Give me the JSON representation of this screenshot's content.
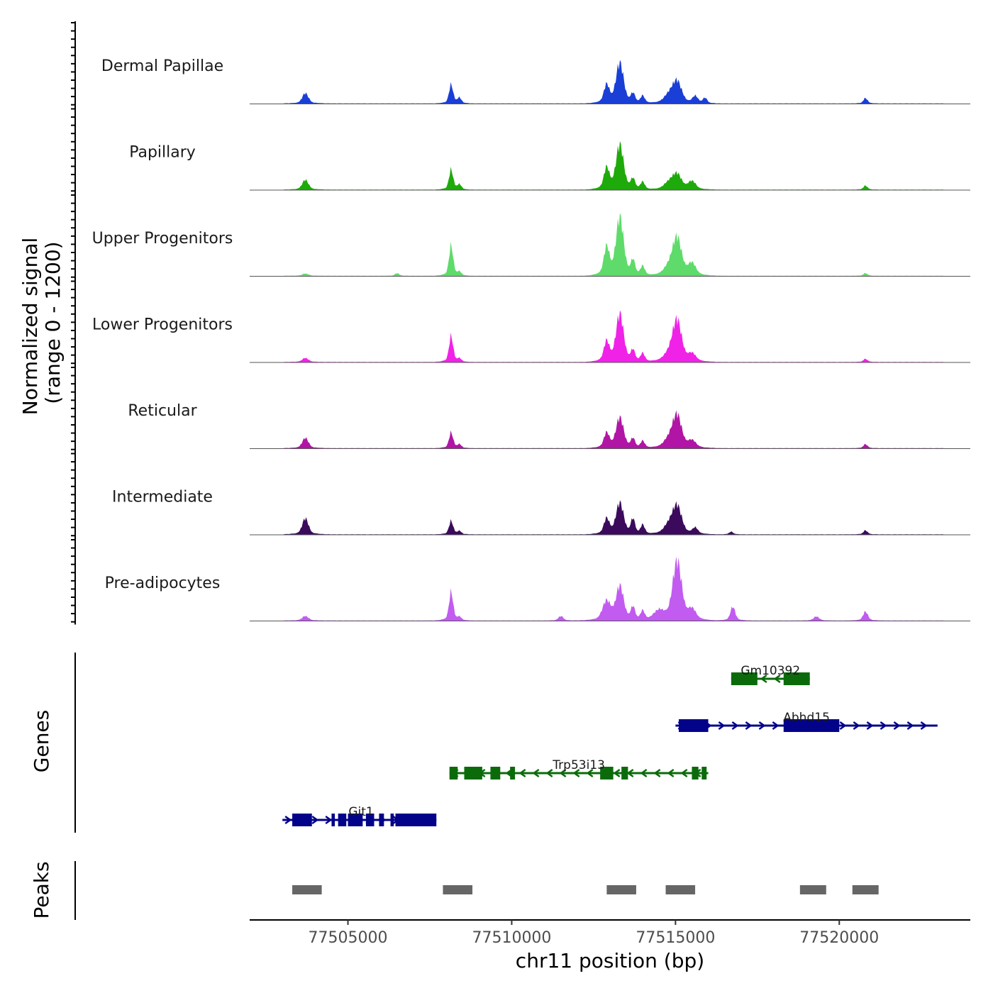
{
  "chart_data": {
    "type": "area",
    "title": "",
    "chromosome": "chr11",
    "xlabel": "chr11 position (bp)",
    "ylabel_line1": "Normalized signal",
    "ylabel_line2": "(range 0 - 1200)",
    "ylim": [
      0,
      1200
    ],
    "xlim": [
      77502000,
      77524000
    ],
    "x_ticks": [
      77505000,
      77510000,
      77515000,
      77520000
    ],
    "x_tick_labels": [
      "77505000",
      "77510000",
      "77515000",
      "77520000"
    ],
    "peak_centers": [
      77503700,
      77508150,
      77513300,
      77515050,
      77516750,
      77520800
    ],
    "tracks": [
      {
        "name": "Dermal Papillae",
        "color": "#1a3fd6",
        "peaks": [
          {
            "x": 77503700,
            "y": 230,
            "w": 90
          },
          {
            "x": 77508150,
            "y": 420,
            "w": 60
          },
          {
            "x": 77508400,
            "y": 120,
            "w": 60
          },
          {
            "x": 77512900,
            "y": 400,
            "w": 80
          },
          {
            "x": 77513300,
            "y": 900,
            "w": 110
          },
          {
            "x": 77513700,
            "y": 200,
            "w": 60
          },
          {
            "x": 77514000,
            "y": 160,
            "w": 60
          },
          {
            "x": 77514800,
            "y": 180,
            "w": 140
          },
          {
            "x": 77515050,
            "y": 480,
            "w": 130
          },
          {
            "x": 77515600,
            "y": 150,
            "w": 80
          },
          {
            "x": 77515900,
            "y": 120,
            "w": 60
          },
          {
            "x": 77520800,
            "y": 120,
            "w": 60
          }
        ]
      },
      {
        "name": "Papillary",
        "color": "#1eaa0a",
        "peaks": [
          {
            "x": 77503700,
            "y": 220,
            "w": 90
          },
          {
            "x": 77508150,
            "y": 450,
            "w": 60
          },
          {
            "x": 77508400,
            "y": 110,
            "w": 60
          },
          {
            "x": 77512900,
            "y": 470,
            "w": 80
          },
          {
            "x": 77513300,
            "y": 1000,
            "w": 110
          },
          {
            "x": 77513700,
            "y": 220,
            "w": 60
          },
          {
            "x": 77514000,
            "y": 160,
            "w": 60
          },
          {
            "x": 77514800,
            "y": 150,
            "w": 140
          },
          {
            "x": 77515050,
            "y": 330,
            "w": 130
          },
          {
            "x": 77515500,
            "y": 180,
            "w": 110
          },
          {
            "x": 77520800,
            "y": 90,
            "w": 60
          }
        ]
      },
      {
        "name": "Upper Progenitors",
        "color": "#5edb6a",
        "peaks": [
          {
            "x": 77503700,
            "y": 50,
            "w": 90
          },
          {
            "x": 77506500,
            "y": 60,
            "w": 60
          },
          {
            "x": 77508150,
            "y": 680,
            "w": 60
          },
          {
            "x": 77508400,
            "y": 80,
            "w": 60
          },
          {
            "x": 77512900,
            "y": 620,
            "w": 80
          },
          {
            "x": 77513300,
            "y": 1300,
            "w": 110
          },
          {
            "x": 77513700,
            "y": 320,
            "w": 60
          },
          {
            "x": 77514000,
            "y": 200,
            "w": 60
          },
          {
            "x": 77514800,
            "y": 180,
            "w": 140
          },
          {
            "x": 77515050,
            "y": 830,
            "w": 130
          },
          {
            "x": 77515500,
            "y": 260,
            "w": 110
          },
          {
            "x": 77520800,
            "y": 60,
            "w": 60
          }
        ]
      },
      {
        "name": "Lower Progenitors",
        "color": "#f022e8",
        "peaks": [
          {
            "x": 77503700,
            "y": 90,
            "w": 90
          },
          {
            "x": 77508150,
            "y": 580,
            "w": 60
          },
          {
            "x": 77508400,
            "y": 70,
            "w": 60
          },
          {
            "x": 77512900,
            "y": 440,
            "w": 80
          },
          {
            "x": 77513300,
            "y": 1070,
            "w": 110
          },
          {
            "x": 77513700,
            "y": 240,
            "w": 60
          },
          {
            "x": 77514000,
            "y": 180,
            "w": 60
          },
          {
            "x": 77514800,
            "y": 160,
            "w": 140
          },
          {
            "x": 77515050,
            "y": 920,
            "w": 130
          },
          {
            "x": 77515500,
            "y": 160,
            "w": 110
          },
          {
            "x": 77520800,
            "y": 70,
            "w": 60
          }
        ]
      },
      {
        "name": "Reticular",
        "color": "#b115a5",
        "peaks": [
          {
            "x": 77503700,
            "y": 230,
            "w": 90
          },
          {
            "x": 77508150,
            "y": 350,
            "w": 60
          },
          {
            "x": 77508400,
            "y": 80,
            "w": 60
          },
          {
            "x": 77512900,
            "y": 330,
            "w": 80
          },
          {
            "x": 77513300,
            "y": 680,
            "w": 110
          },
          {
            "x": 77513700,
            "y": 200,
            "w": 60
          },
          {
            "x": 77514000,
            "y": 150,
            "w": 60
          },
          {
            "x": 77514800,
            "y": 180,
            "w": 140
          },
          {
            "x": 77515050,
            "y": 720,
            "w": 130
          },
          {
            "x": 77515500,
            "y": 150,
            "w": 110
          },
          {
            "x": 77520800,
            "y": 90,
            "w": 60
          }
        ]
      },
      {
        "name": "Intermediate",
        "color": "#3b0a5c",
        "peaks": [
          {
            "x": 77503700,
            "y": 360,
            "w": 90
          },
          {
            "x": 77508150,
            "y": 300,
            "w": 60
          },
          {
            "x": 77508400,
            "y": 70,
            "w": 60
          },
          {
            "x": 77512900,
            "y": 340,
            "w": 80
          },
          {
            "x": 77513300,
            "y": 700,
            "w": 110
          },
          {
            "x": 77513700,
            "y": 330,
            "w": 60
          },
          {
            "x": 77514000,
            "y": 200,
            "w": 60
          },
          {
            "x": 77514800,
            "y": 200,
            "w": 140
          },
          {
            "x": 77515050,
            "y": 620,
            "w": 130
          },
          {
            "x": 77515600,
            "y": 130,
            "w": 80
          },
          {
            "x": 77516700,
            "y": 60,
            "w": 60
          },
          {
            "x": 77520800,
            "y": 90,
            "w": 60
          }
        ]
      },
      {
        "name": "Pre-adipocytes",
        "color": "#c25bf0",
        "peaks": [
          {
            "x": 77503700,
            "y": 100,
            "w": 90
          },
          {
            "x": 77508150,
            "y": 640,
            "w": 60
          },
          {
            "x": 77508400,
            "y": 70,
            "w": 60
          },
          {
            "x": 77512900,
            "y": 420,
            "w": 120
          },
          {
            "x": 77513300,
            "y": 760,
            "w": 110
          },
          {
            "x": 77513700,
            "y": 280,
            "w": 60
          },
          {
            "x": 77514000,
            "y": 200,
            "w": 60
          },
          {
            "x": 77514500,
            "y": 200,
            "w": 160
          },
          {
            "x": 77515050,
            "y": 1330,
            "w": 130
          },
          {
            "x": 77515500,
            "y": 220,
            "w": 110
          },
          {
            "x": 77516750,
            "y": 310,
            "w": 70
          },
          {
            "x": 77519300,
            "y": 90,
            "w": 80
          },
          {
            "x": 77520800,
            "y": 200,
            "w": 70
          },
          {
            "x": 77511500,
            "y": 100,
            "w": 70
          }
        ]
      }
    ],
    "genes": [
      {
        "name": "Gm10392",
        "strand": "-",
        "start": 77516700,
        "end": 77519100,
        "row": 0,
        "color": "#0b6b0b",
        "exons": [
          [
            77516700,
            77517500
          ],
          [
            77518300,
            77519100
          ]
        ]
      },
      {
        "name": "Abhd15",
        "strand": "+",
        "start": 77515000,
        "end": 77523000,
        "row": 1,
        "color": "#03038a",
        "exons": [
          [
            77515100,
            77516000
          ],
          [
            77518300,
            77520000
          ]
        ]
      },
      {
        "name": "Trp53i13",
        "strand": "-",
        "start": 77508100,
        "end": 77516000,
        "row": 2,
        "color": "#0b6b0b",
        "exons": [
          [
            77508100,
            77508350
          ],
          [
            77508550,
            77509100
          ],
          [
            77509350,
            77509650
          ],
          [
            77509950,
            77510100
          ],
          [
            77512700,
            77513100
          ],
          [
            77513350,
            77513550
          ],
          [
            77515500,
            77515700
          ],
          [
            77515800,
            77515950
          ]
        ]
      },
      {
        "name": "Git1",
        "strand": "+",
        "start": 77503000,
        "end": 77507700,
        "row": 3,
        "color": "#03038a",
        "exons": [
          [
            77503300,
            77503900
          ],
          [
            77504500,
            77504600
          ],
          [
            77504700,
            77504950
          ],
          [
            77505000,
            77505450
          ],
          [
            77505550,
            77505800
          ],
          [
            77505950,
            77506100
          ],
          [
            77506300,
            77506400
          ],
          [
            77506450,
            77507700
          ]
        ]
      }
    ],
    "peaks": [
      [
        77503300,
        77504200
      ],
      [
        77507900,
        77508800
      ],
      [
        77512900,
        77513800
      ],
      [
        77514700,
        77515600
      ],
      [
        77518800,
        77519600
      ],
      [
        77520400,
        77521200
      ]
    ],
    "panel_titles": {
      "genes": "Genes",
      "peaks": "Peaks"
    }
  }
}
